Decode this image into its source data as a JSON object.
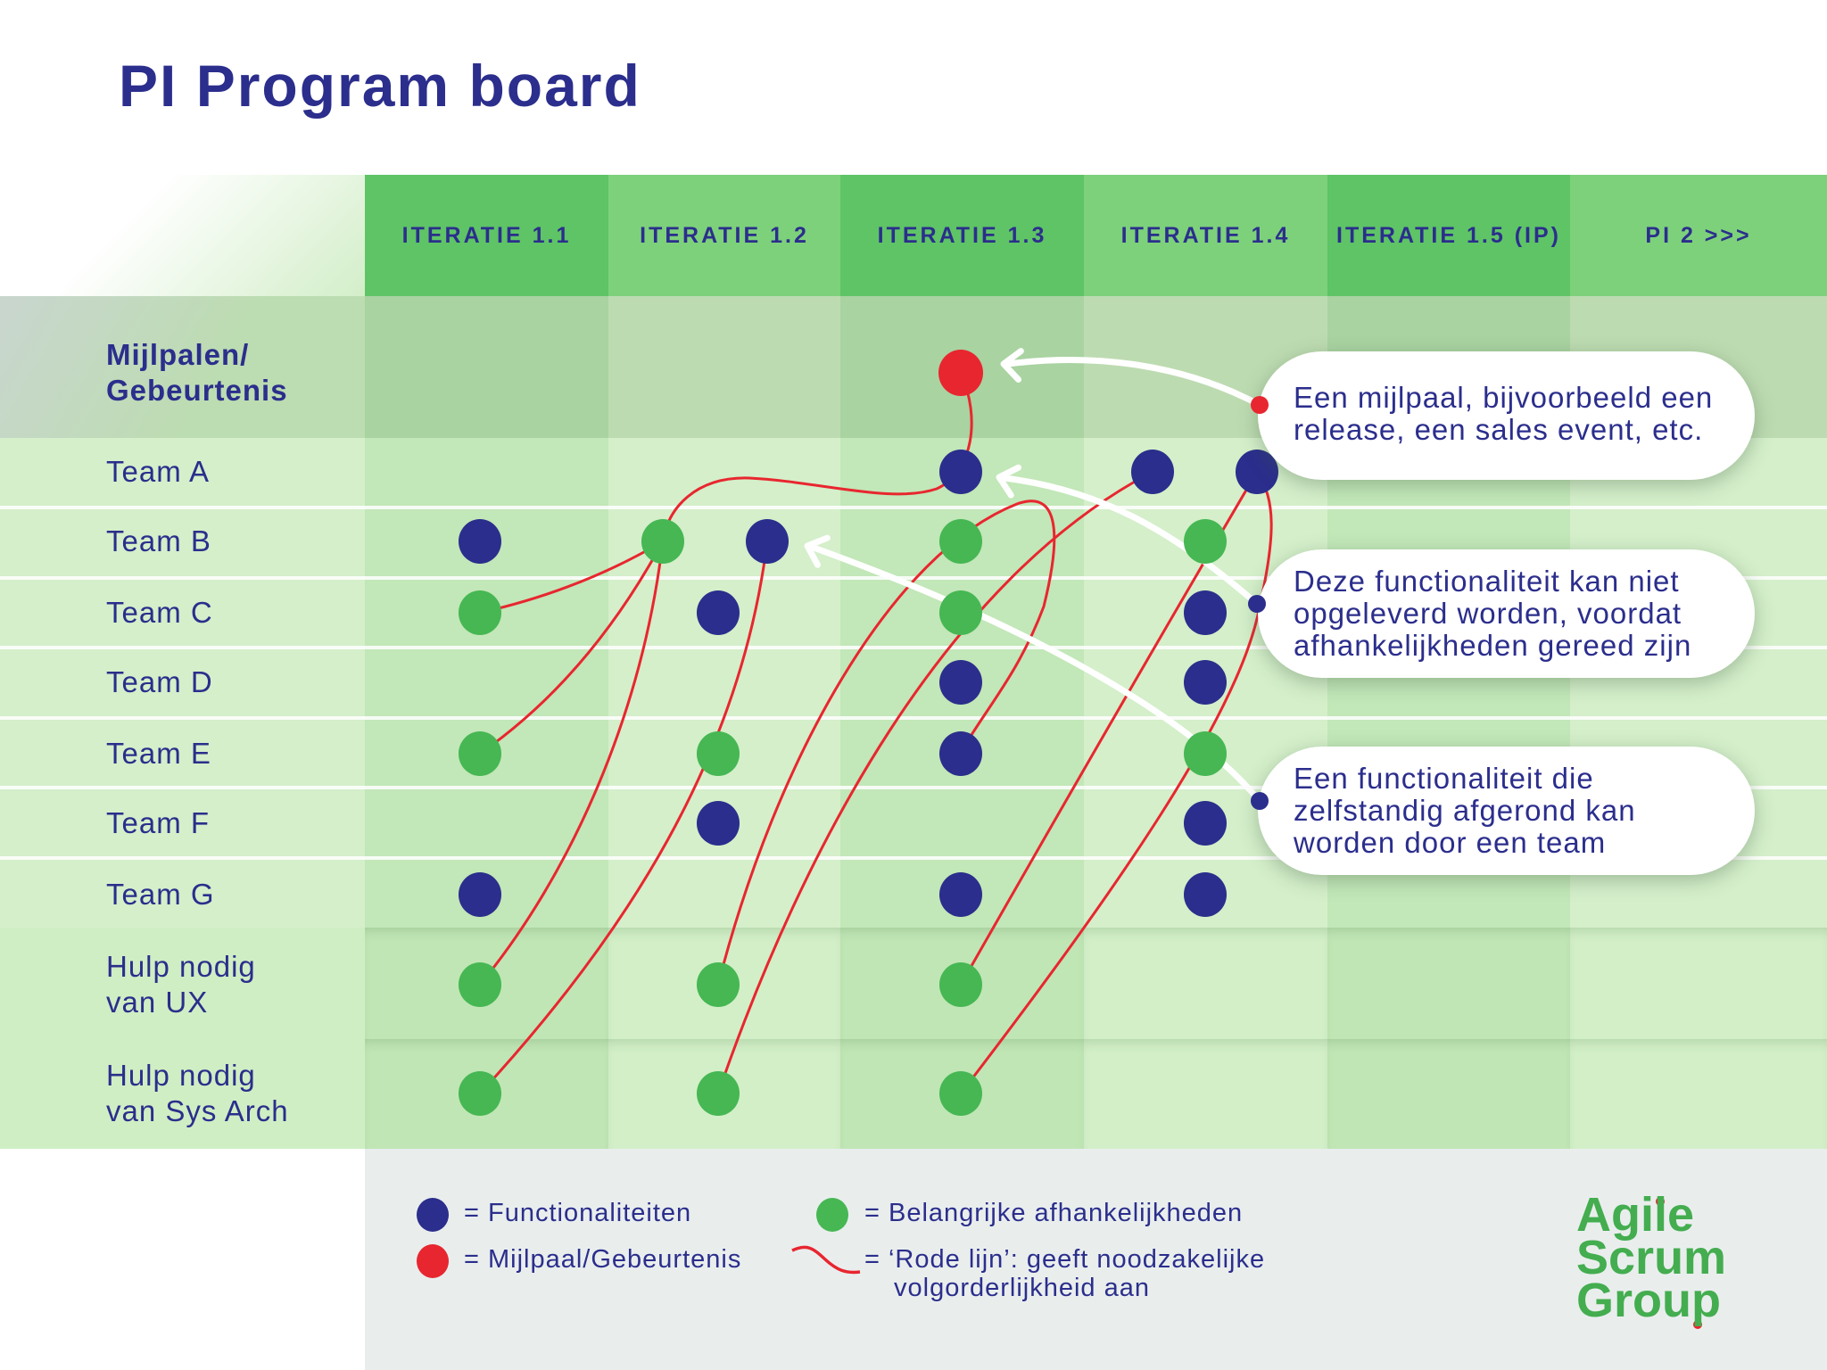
{
  "title": "PI Program board",
  "colors": {
    "navy": "#2b2e8c",
    "feature_blue": "#2b2e8c",
    "dependency_green": "#46b753",
    "milestone_red": "#e8262f",
    "header_dark": "#5ec466",
    "header_light": "#7dd17b",
    "logo_green": "#44ad4f"
  },
  "columns": [
    "ITERATIE 1.1",
    "ITERATIE 1.2",
    "ITERATIE 1.3",
    "ITERATIE 1.4",
    "ITERATIE 1.5 (IP)",
    "PI 2 >>>"
  ],
  "rows": [
    {
      "label": [
        "Mijlpalen/",
        "Gebeurtenis"
      ],
      "bold": true
    },
    {
      "label": [
        "Team A"
      ]
    },
    {
      "label": [
        "Team B"
      ]
    },
    {
      "label": [
        "Team C"
      ]
    },
    {
      "label": [
        "Team D"
      ]
    },
    {
      "label": [
        "Team E"
      ]
    },
    {
      "label": [
        "Team F"
      ]
    },
    {
      "label": [
        "Team G"
      ]
    },
    {
      "label": [
        "Hulp nodig",
        "van UX"
      ]
    },
    {
      "label": [
        "Hulp nodig",
        "van Sys Arch"
      ]
    }
  ],
  "dots": [
    {
      "row": 0,
      "col": 2,
      "type": "milestone"
    },
    {
      "row": 1,
      "col": 2,
      "type": "feature"
    },
    {
      "row": 1,
      "col": 3,
      "type": "feature"
    },
    {
      "row": 1,
      "col": 3,
      "type": "feature"
    },
    {
      "row": 2,
      "col": 0,
      "type": "feature"
    },
    {
      "row": 2,
      "col": 1,
      "type": "dependency"
    },
    {
      "row": 2,
      "col": 1,
      "type": "feature"
    },
    {
      "row": 2,
      "col": 2,
      "type": "dependency"
    },
    {
      "row": 2,
      "col": 3,
      "type": "dependency"
    },
    {
      "row": 3,
      "col": 0,
      "type": "dependency"
    },
    {
      "row": 3,
      "col": 1,
      "type": "feature"
    },
    {
      "row": 3,
      "col": 2,
      "type": "dependency"
    },
    {
      "row": 3,
      "col": 3,
      "type": "feature"
    },
    {
      "row": 4,
      "col": 2,
      "type": "feature"
    },
    {
      "row": 4,
      "col": 3,
      "type": "feature"
    },
    {
      "row": 5,
      "col": 0,
      "type": "dependency"
    },
    {
      "row": 5,
      "col": 1,
      "type": "dependency"
    },
    {
      "row": 5,
      "col": 2,
      "type": "feature"
    },
    {
      "row": 5,
      "col": 3,
      "type": "dependency"
    },
    {
      "row": 6,
      "col": 1,
      "type": "feature"
    },
    {
      "row": 6,
      "col": 3,
      "type": "feature"
    },
    {
      "row": 7,
      "col": 0,
      "type": "feature"
    },
    {
      "row": 7,
      "col": 2,
      "type": "feature"
    },
    {
      "row": 7,
      "col": 3,
      "type": "feature"
    },
    {
      "row": 8,
      "col": 0,
      "type": "dependency"
    },
    {
      "row": 8,
      "col": 1,
      "type": "dependency"
    },
    {
      "row": 8,
      "col": 2,
      "type": "dependency"
    },
    {
      "row": 9,
      "col": 0,
      "type": "dependency"
    },
    {
      "row": 9,
      "col": 1,
      "type": "dependency"
    },
    {
      "row": 9,
      "col": 2,
      "type": "dependency"
    }
  ],
  "red_lines": [
    {
      "from": 0,
      "to": 5
    },
    {
      "from": 9,
      "to": 5
    },
    {
      "from": 15,
      "to": 5
    },
    {
      "from": 24,
      "to": 5
    },
    {
      "from": 27,
      "to": 6
    },
    {
      "from": 25,
      "to": 17
    },
    {
      "from": 28,
      "to": 2
    },
    {
      "from": 26,
      "to": 3
    },
    {
      "from": 29,
      "to": 3
    }
  ],
  "callouts": [
    {
      "lines": [
        "Een mijlpaal, bijvoorbeeld een",
        "release, een sales event, etc."
      ],
      "points_to": 0,
      "marker": "milestone"
    },
    {
      "lines": [
        "Deze functionaliteit kan niet",
        "opgeleverd worden, voordat",
        "afhankelijkheden gereed zijn"
      ],
      "points_to": 1,
      "marker": "feature"
    },
    {
      "lines": [
        "Een functionaliteit die",
        "zelfstandig afgerond kan",
        "worden door een team"
      ],
      "points_to": 6,
      "marker": "feature"
    }
  ],
  "legend": {
    "feature": "= Functionaliteiten",
    "milestone": "= Mijlpaal/Gebeurtenis",
    "dependency": "= Belangrijke afhankelijkheden",
    "red_line": [
      "= ‘Rode lijn’: geeft noodzakelijke",
      "volgorderlijkheid aan"
    ]
  },
  "logo": [
    "Agile",
    "Scrum",
    "Group"
  ]
}
